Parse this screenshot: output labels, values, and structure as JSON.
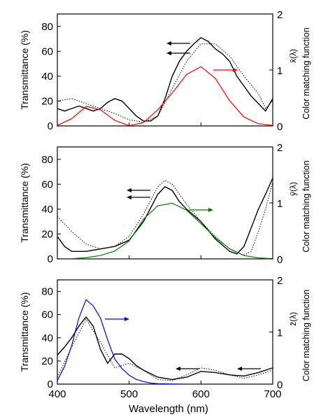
{
  "chart_data": [
    {
      "type": "line",
      "panel": "x",
      "ylabel": "Transmittance (%)",
      "y2label_main": "Color matching function",
      "y2label_sub": "x̄(λ)",
      "xlim": [
        400,
        700
      ],
      "ylim": [
        0,
        90
      ],
      "y2lim": [
        0,
        2
      ],
      "yticks": [
        "0",
        "20",
        "40",
        "60",
        "80"
      ],
      "y2ticks": [
        "0",
        "1",
        "2"
      ],
      "cmf_color": "#ff0000",
      "series": [
        {
          "kind": "transmittance-solid",
          "x": [
            400,
            410,
            420,
            430,
            440,
            450,
            460,
            470,
            480,
            490,
            500,
            510,
            520,
            530,
            540,
            550,
            560,
            570,
            580,
            590,
            600,
            610,
            620,
            630,
            640,
            650,
            660,
            670,
            680,
            690,
            700
          ],
          "values": [
            14,
            12,
            14,
            16,
            14,
            12,
            14,
            19,
            22,
            20,
            14,
            8,
            4,
            4,
            8,
            22,
            40,
            52,
            60,
            66,
            71,
            68,
            62,
            58,
            52,
            40,
            32,
            24,
            18,
            12,
            22
          ]
        },
        {
          "kind": "transmittance-dotted",
          "x": [
            400,
            420,
            440,
            460,
            480,
            500,
            520,
            540,
            560,
            580,
            600,
            620,
            640,
            660,
            680,
            690,
            700
          ],
          "values": [
            20,
            22,
            18,
            14,
            10,
            5,
            3,
            8,
            30,
            52,
            66,
            66,
            56,
            40,
            26,
            14,
            20
          ]
        },
        {
          "kind": "cmf",
          "x": [
            400,
            420,
            440,
            460,
            480,
            500,
            520,
            540,
            560,
            580,
            600,
            620,
            640,
            660,
            680,
            700
          ],
          "values": [
            0.01,
            0.13,
            0.35,
            0.29,
            0.1,
            0.005,
            0.06,
            0.29,
            0.59,
            0.92,
            1.06,
            0.85,
            0.45,
            0.16,
            0.04,
            0.01
          ]
        }
      ]
    },
    {
      "type": "line",
      "panel": "y",
      "ylabel": "Transmittance (%)",
      "y2label_main": "Color matching function",
      "y2label_sub": "ȳ(λ)",
      "xlim": [
        400,
        700
      ],
      "ylim": [
        0,
        90
      ],
      "y2lim": [
        0,
        2
      ],
      "yticks": [
        "0",
        "20",
        "40",
        "60",
        "80"
      ],
      "y2ticks": [
        "0",
        "1",
        "2"
      ],
      "cmf_color": "#008000",
      "series": [
        {
          "kind": "transmittance-solid",
          "x": [
            400,
            410,
            420,
            440,
            460,
            480,
            500,
            520,
            540,
            550,
            560,
            570,
            580,
            600,
            620,
            640,
            650,
            660,
            670,
            680,
            690,
            700
          ],
          "values": [
            18,
            10,
            6,
            6,
            8,
            10,
            15,
            30,
            52,
            58,
            55,
            46,
            40,
            30,
            16,
            6,
            4,
            10,
            25,
            40,
            52,
            65
          ]
        },
        {
          "kind": "transmittance-dotted",
          "x": [
            400,
            420,
            440,
            460,
            480,
            500,
            520,
            540,
            550,
            560,
            580,
            600,
            620,
            640,
            650,
            660,
            670,
            680,
            690,
            700
          ],
          "values": [
            34,
            22,
            12,
            8,
            10,
            18,
            36,
            58,
            63,
            60,
            44,
            30,
            18,
            8,
            5,
            3,
            6,
            22,
            40,
            62
          ]
        },
        {
          "kind": "cmf",
          "x": [
            400,
            420,
            440,
            460,
            480,
            500,
            520,
            540,
            560,
            580,
            600,
            620,
            640,
            660,
            680,
            700
          ],
          "values": [
            0.0,
            0.004,
            0.023,
            0.06,
            0.14,
            0.32,
            0.71,
            0.95,
            0.995,
            0.87,
            0.63,
            0.38,
            0.18,
            0.06,
            0.017,
            0.004
          ]
        }
      ]
    },
    {
      "type": "line",
      "panel": "z",
      "xlabel": "Wavelength (nm)",
      "ylabel": "Transmittance (%)",
      "y2label_main": "Color matching function",
      "y2label_sub": "z̄(λ)",
      "xlim": [
        400,
        700
      ],
      "ylim": [
        0,
        90
      ],
      "y2lim": [
        0,
        2
      ],
      "xticks": [
        "400",
        "500",
        "600",
        "700"
      ],
      "yticks": [
        "0",
        "20",
        "40",
        "60",
        "80"
      ],
      "y2ticks": [
        "0",
        "1",
        "2"
      ],
      "cmf_color": "#0000ff",
      "series": [
        {
          "kind": "transmittance-solid",
          "x": [
            400,
            410,
            420,
            430,
            440,
            450,
            460,
            470,
            480,
            490,
            500,
            510,
            520,
            540,
            560,
            580,
            600,
            620,
            640,
            660,
            680,
            700
          ],
          "values": [
            25,
            32,
            40,
            50,
            58,
            50,
            30,
            18,
            26,
            26,
            22,
            16,
            12,
            6,
            4,
            6,
            11,
            10,
            8,
            7,
            10,
            14
          ]
        },
        {
          "kind": "transmittance-dotted",
          "x": [
            400,
            420,
            440,
            460,
            480,
            500,
            520,
            540,
            560,
            580,
            600,
            620,
            640,
            660,
            680,
            700
          ],
          "values": [
            6,
            32,
            56,
            36,
            14,
            18,
            12,
            4,
            3,
            8,
            14,
            12,
            8,
            5,
            8,
            12
          ]
        },
        {
          "kind": "cmf",
          "x": [
            400,
            410,
            420,
            430,
            440,
            450,
            460,
            470,
            480,
            490,
            500,
            510,
            520,
            530,
            540,
            550,
            560,
            570
          ],
          "values": [
            0.07,
            0.34,
            0.74,
            1.27,
            1.62,
            1.5,
            1.27,
            0.85,
            0.48,
            0.3,
            0.17,
            0.09,
            0.05,
            0.02,
            0.01,
            0.005,
            0.002,
            0.0
          ]
        }
      ]
    }
  ]
}
